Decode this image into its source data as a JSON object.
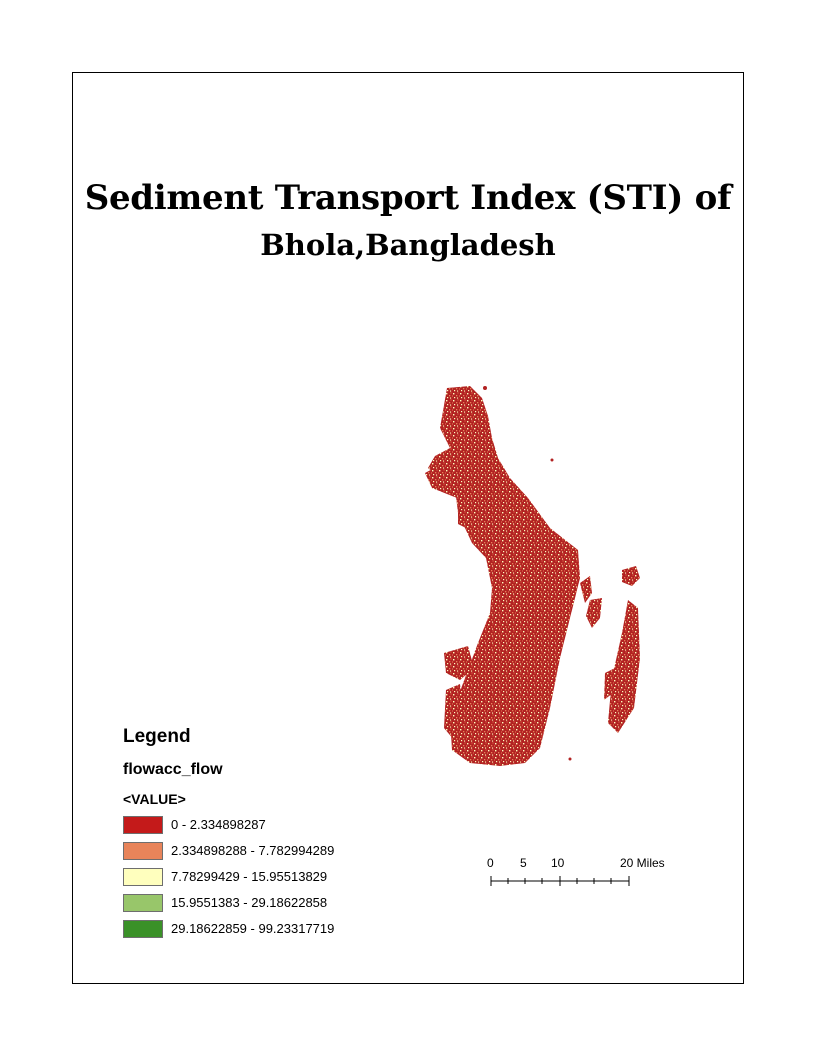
{
  "title": {
    "line1": "Sediment Transport Index (STI) of",
    "line2": "Bhola,Bangladesh"
  },
  "legend": {
    "heading": "Legend",
    "layer": "flowacc_flow",
    "field": "<VALUE>",
    "classes": [
      {
        "label": "0 - 2.334898287",
        "color": "#c41a1a"
      },
      {
        "label": "2.334898288 - 7.782994289",
        "color": "#e8845a"
      },
      {
        "label": "7.78299429 - 15.95513829",
        "color": "#ffffbe"
      },
      {
        "label": "15.9551383 - 29.18622858",
        "color": "#98c66a"
      },
      {
        "label": "29.18622859 - 99.23317719",
        "color": "#3a9128"
      }
    ]
  },
  "scalebar": {
    "ticks": [
      "0",
      "5",
      "10",
      "20 Miles"
    ]
  },
  "map": {
    "base_color": "#b22222",
    "speckle_colors": [
      "#e8845a",
      "#ffffbe"
    ]
  }
}
